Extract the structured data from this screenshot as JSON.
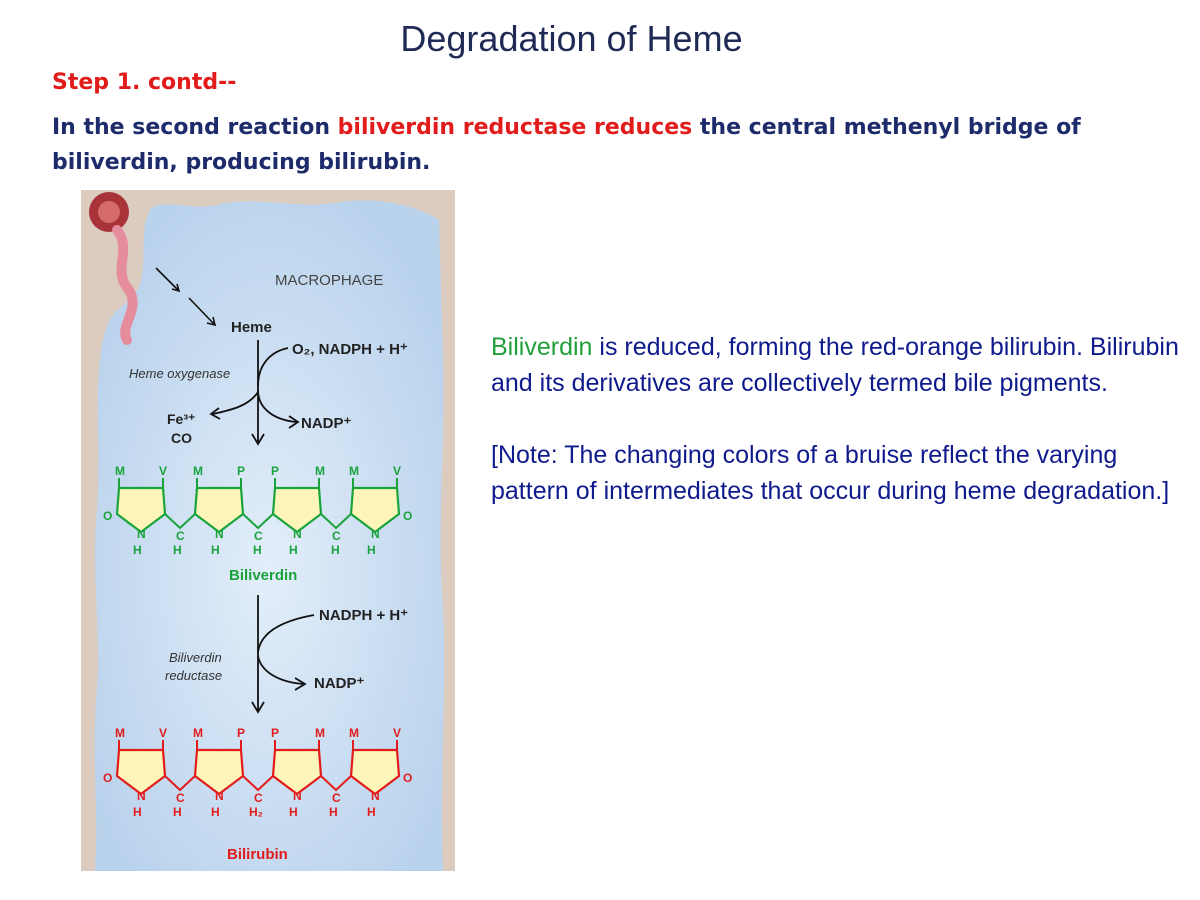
{
  "title": "Degradation of Heme",
  "step_heading": "Step 1. contd--",
  "intro": {
    "part1": "In the second reaction ",
    "highlight": "biliverdin reductase reduces",
    "part2": " the central methenyl bridge of biliverdin, producing bilirubin."
  },
  "figure": {
    "cell_label": "MACROPHAGE",
    "heme": "Heme",
    "o2_nadph": "O₂, NADPH + H⁺",
    "heme_oxygenase": "Heme oxygenase",
    "fe": "Fe³⁺",
    "co": "CO",
    "nadp_1": "NADP⁺",
    "biliverdin_label": "Biliverdin",
    "nadph_2": "NADPH + H⁺",
    "reductase_line1": "Biliverdin",
    "reductase_line2": "reductase",
    "nadp_2": "NADP⁺",
    "bilirubin_label": "Bilirubin",
    "substituents": [
      "M",
      "V",
      "M",
      "P",
      "P",
      "M",
      "M",
      "V"
    ],
    "biliverdin_bridges": [
      "C",
      "C",
      "C"
    ],
    "biliverdin_ring_n": [
      "N",
      "N",
      "N",
      "N"
    ],
    "biliverdin_h": [
      "H",
      "H",
      "H",
      "H",
      "H",
      "H",
      "H"
    ],
    "bilirubin_bridges": [
      "C",
      "C",
      "C"
    ],
    "bilirubin_ring_n": [
      "N",
      "N",
      "N",
      "N"
    ],
    "bilirubin_h": [
      "H",
      "H",
      "H",
      "H",
      "H",
      "H",
      "H",
      "H"
    ],
    "h2": "H₂",
    "oxygen": "O",
    "colors": {
      "biliverdin": "#1aa33c",
      "bilirubin": "#e21b1b",
      "cell": "#bfd6ee",
      "tissue": "#dccbbf",
      "ring_fill": "#fdf6b8"
    }
  },
  "note": {
    "green_word": "Biliverdin",
    "p1_rest": " is reduced, forming the red-orange bilirubin. Bilirubin and its derivatives are collectively termed bile pigments.",
    "p2": "[Note: The changing colors of a bruise reflect the varying pattern of intermediates that occur during heme degradation.]"
  }
}
